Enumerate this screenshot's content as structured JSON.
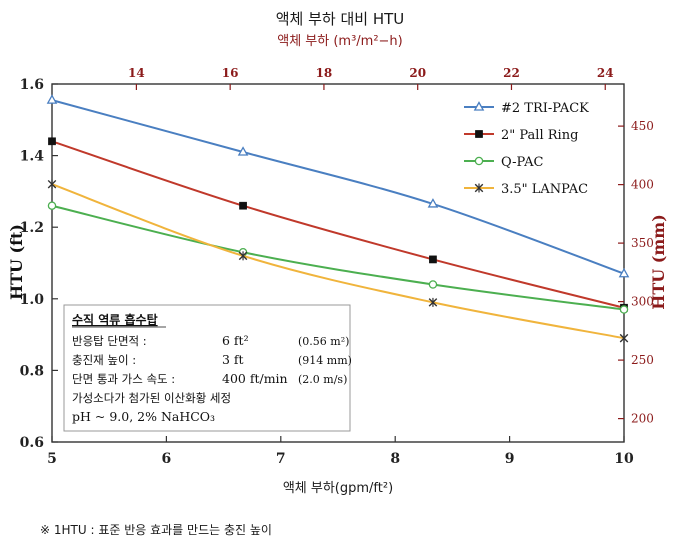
{
  "title": "액체 부하 대비 HTU",
  "subtitle": "액체 부하 (m³/m²−h)",
  "footnote": "※ 1HTU : 표준 반응 효과를 만드는 충진 높이",
  "colors": {
    "tri_pack": "#4a7fc1",
    "pall_ring": "#c0392b",
    "q_pac": "#4caf50",
    "lanpac": "#f0b43c",
    "secondary_axis": "#8b1a1a"
  },
  "chart_data": {
    "type": "line",
    "xlabel": "액체 부하(gpm/ft²)",
    "ylabel": "HTU (ft)",
    "y2label": "HTU (mm)",
    "x2label": "액체 부하 (m³/m²−h)",
    "xlim": [
      5,
      10
    ],
    "ylim": [
      0.6,
      1.6
    ],
    "y2lim": [
      180,
      486
    ],
    "x2lim": [
      12.2,
      24.4
    ],
    "x_ticks": [
      "5",
      "6",
      "7",
      "8",
      "9",
      "10"
    ],
    "y_ticks": [
      "0.6",
      "0.8",
      "1.0",
      "1.2",
      "1.4",
      "1.6"
    ],
    "x2_ticks": [
      "14",
      "16",
      "18",
      "20",
      "22",
      "24"
    ],
    "y2_ticks": [
      "200",
      "250",
      "300",
      "350",
      "400",
      "450"
    ],
    "grid": false,
    "legend_position": "top-right",
    "series": [
      {
        "name": "#2 TRI-PACK",
        "marker": "triangle",
        "points": [
          [
            5,
            1.555
          ],
          [
            6.67,
            1.41
          ],
          [
            8.33,
            1.265
          ],
          [
            10,
            1.07
          ]
        ]
      },
      {
        "name": "2\" Pall Ring",
        "marker": "square",
        "points": [
          [
            5,
            1.44
          ],
          [
            6.67,
            1.26
          ],
          [
            8.33,
            1.11
          ],
          [
            10,
            0.975
          ]
        ]
      },
      {
        "name": "Q-PAC",
        "marker": "circle",
        "points": [
          [
            5,
            1.26
          ],
          [
            6.67,
            1.13
          ],
          [
            8.33,
            1.04
          ],
          [
            10,
            0.97
          ]
        ]
      },
      {
        "name": "3.5\" LANPAC",
        "marker": "star",
        "points": [
          [
            5,
            1.32
          ],
          [
            6.67,
            1.12
          ],
          [
            8.33,
            0.99
          ],
          [
            10,
            0.89
          ]
        ]
      }
    ]
  },
  "info_box": {
    "title": "수직 역류 흡수탑",
    "rows": [
      {
        "label": "반응탑 단면적 :",
        "value": "6 ft²",
        "si": "(0.56 m²)"
      },
      {
        "label": "충진재 높이 :",
        "value": "3 ft",
        "si": "(914 mm)"
      },
      {
        "label": "단면 통과 가스 속도 :",
        "value": "400 ft/min",
        "si": "(2.0 m/s)"
      }
    ],
    "note1": "가성소다가 첨가된 이산화황 세정",
    "note2": "pH ~ 9.0,  2% NaHCO₃"
  }
}
